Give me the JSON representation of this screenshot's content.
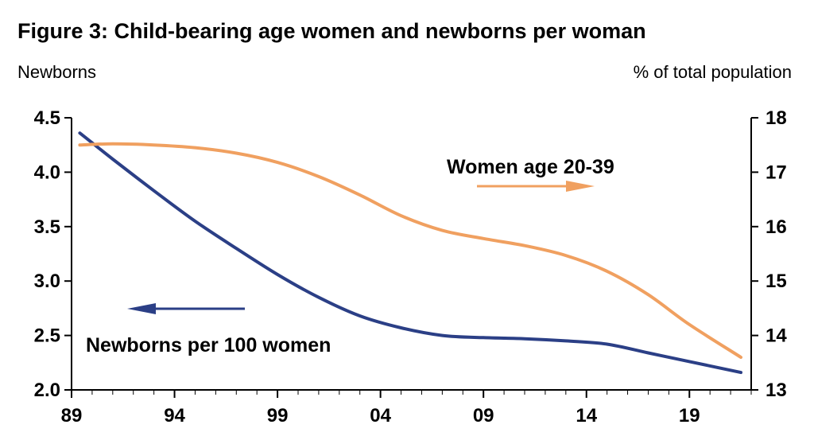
{
  "chart_data": {
    "type": "line",
    "title": "Figure 3: Child-bearing age women and newborns per woman",
    "left_axis_label": "Newborns",
    "right_axis_label": "% of total population",
    "x_ticks": [
      "89",
      "94",
      "99",
      "04",
      "09",
      "14",
      "19"
    ],
    "x_range": [
      1989,
      2022
    ],
    "left_ylim": [
      2.0,
      4.5
    ],
    "left_yticks": [
      "2.0",
      "2.5",
      "3.0",
      "3.5",
      "4.0",
      "4.5"
    ],
    "right_ylim": [
      13,
      18
    ],
    "right_yticks": [
      "13",
      "14",
      "15",
      "16",
      "17",
      "18"
    ],
    "grid": false,
    "series": [
      {
        "name": "Newborns per 100 women",
        "axis": "left",
        "color": "#2b3f86",
        "x": [
          1989.4,
          1991,
          1993,
          1995,
          1997,
          1999,
          2001,
          2003,
          2005,
          2007,
          2009,
          2011,
          2013,
          2015,
          2017,
          2019,
          2021.5
        ],
        "y": [
          4.36,
          4.12,
          3.83,
          3.55,
          3.3,
          3.06,
          2.85,
          2.68,
          2.57,
          2.5,
          2.48,
          2.47,
          2.45,
          2.42,
          2.34,
          2.26,
          2.16
        ]
      },
      {
        "name": "Women age 20-39",
        "axis": "right",
        "color": "#f0a060",
        "x": [
          1989.4,
          1991,
          1993,
          1995,
          1997,
          1999,
          2001,
          2003,
          2005,
          2007,
          2009,
          2011,
          2013,
          2015,
          2017,
          2019,
          2021.5
        ],
        "y": [
          17.5,
          17.52,
          17.5,
          17.45,
          17.35,
          17.18,
          16.92,
          16.58,
          16.2,
          15.93,
          15.78,
          15.65,
          15.47,
          15.18,
          14.75,
          14.2,
          13.6
        ]
      }
    ],
    "annotations": [
      {
        "text": "Women age 20-39",
        "arrow": "right"
      },
      {
        "text": "Newborns per 100 women",
        "arrow": "left"
      }
    ]
  }
}
